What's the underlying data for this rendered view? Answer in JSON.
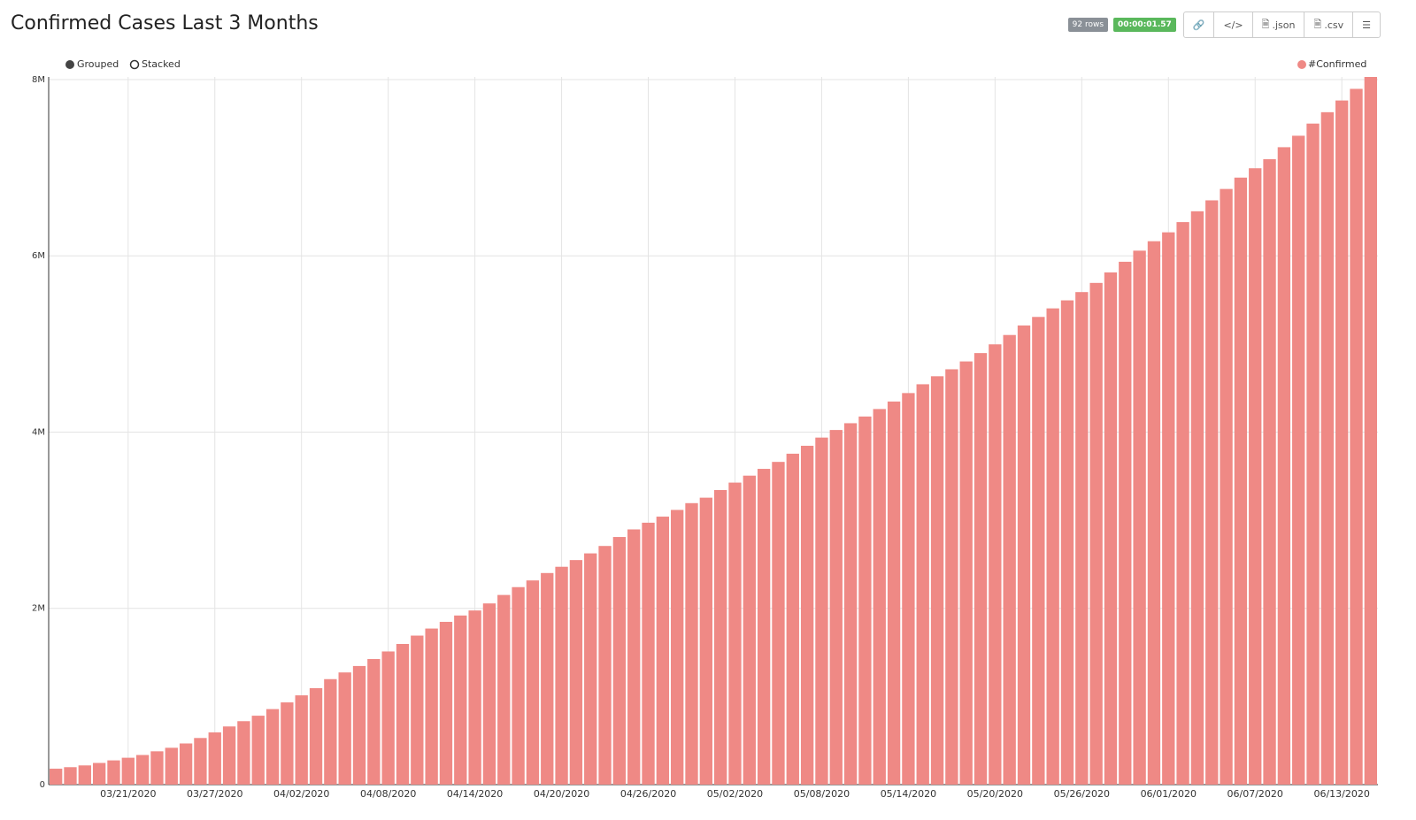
{
  "header": {
    "title": "Confirmed Cases Last 3 Months",
    "rows_badge": "92 rows",
    "timer_badge": "00:00:01.57",
    "json_button": ".json",
    "csv_button": ".csv"
  },
  "controls": {
    "grouped": "Grouped",
    "stacked": "Stacked"
  },
  "chart_data": {
    "type": "bar",
    "categories": [
      null,
      null,
      null,
      null,
      null,
      "03/21/2020",
      null,
      null,
      null,
      null,
      null,
      "03/27/2020",
      null,
      null,
      null,
      null,
      null,
      "04/02/2020",
      null,
      null,
      null,
      null,
      null,
      "04/08/2020",
      null,
      null,
      null,
      null,
      null,
      "04/14/2020",
      null,
      null,
      null,
      null,
      null,
      "04/20/2020",
      null,
      null,
      null,
      null,
      null,
      "04/26/2020",
      null,
      null,
      null,
      null,
      null,
      "05/02/2020",
      null,
      null,
      null,
      null,
      null,
      "05/08/2020",
      null,
      null,
      null,
      null,
      null,
      "05/14/2020",
      null,
      null,
      null,
      null,
      null,
      "05/20/2020",
      null,
      null,
      null,
      null,
      null,
      "05/26/2020",
      null,
      null,
      null,
      null,
      null,
      "06/01/2020",
      null,
      null,
      null,
      null,
      null,
      "06/07/2020",
      null,
      null,
      null,
      null,
      null,
      "06/13/2020",
      null,
      null
    ],
    "series": [
      {
        "name": "#Confirmed",
        "color": "#ef8985",
        "values": [
          181000,
          198000,
          218000,
          246000,
          275000,
          305000,
          336000,
          378000,
          418000,
          467000,
          529000,
          593000,
          660000,
          720000,
          782000,
          857000,
          933000,
          1013000,
          1095000,
          1197000,
          1273000,
          1346000,
          1425000,
          1511000,
          1596000,
          1691000,
          1771000,
          1847000,
          1919000,
          1976000,
          2056000,
          2152000,
          2241000,
          2317000,
          2401000,
          2472000,
          2548000,
          2624000,
          2708000,
          2810000,
          2896000,
          2972000,
          3041000,
          3117000,
          3194000,
          3256000,
          3343000,
          3427000,
          3506000,
          3583000,
          3662000,
          3755000,
          3845000,
          3938000,
          4024000,
          4101000,
          4177000,
          4262000,
          4347000,
          4443000,
          4543000,
          4634000,
          4713000,
          4802000,
          4897000,
          4996000,
          5102000,
          5210000,
          5307000,
          5404000,
          5495000,
          5589000,
          5693000,
          5812000,
          5933000,
          6059000,
          6166000,
          6267000,
          6383000,
          6506000,
          6630000,
          6759000,
          6888000,
          6994000,
          7097000,
          7233000,
          7363000,
          7501000,
          7630000,
          7763000,
          7895000,
          8030000
        ]
      }
    ],
    "ylim": [
      0,
      8030000
    ],
    "yticks": [
      0,
      {
        "value": 2000000,
        "label": "2M"
      },
      {
        "value": 4000000,
        "label": "4M"
      },
      {
        "value": 6000000,
        "label": "6M"
      },
      {
        "value": 8000000,
        "label": "8M"
      }
    ],
    "grid": true,
    "legend": "top-right"
  }
}
